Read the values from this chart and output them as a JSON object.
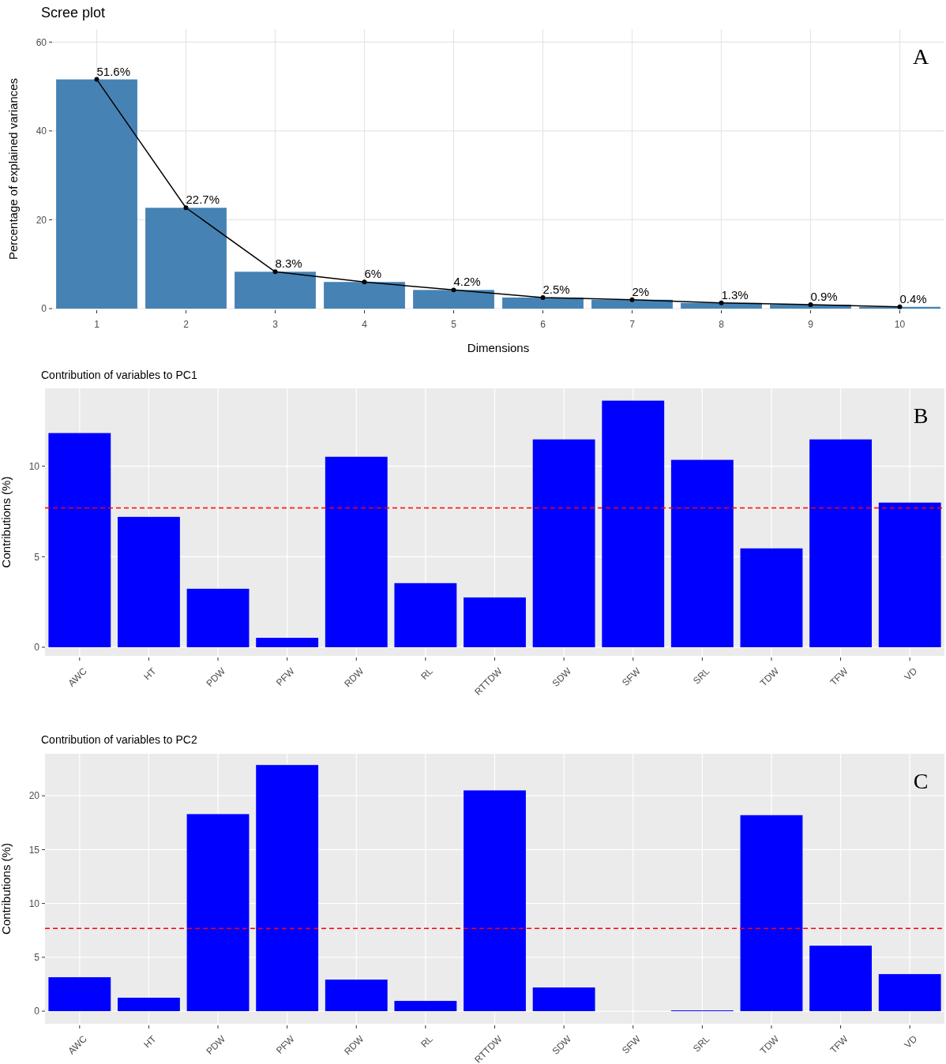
{
  "chart_data": [
    {
      "type": "bar",
      "title": "Scree plot",
      "xlabel": "Dimensions",
      "ylabel": "Percentage of explained variances",
      "categories": [
        "1",
        "2",
        "3",
        "4",
        "5",
        "6",
        "7",
        "8",
        "9",
        "10"
      ],
      "series": [
        {
          "color": "#4682b4",
          "values": [
            51.6,
            22.7,
            8.3,
            6,
            4.2,
            2.5,
            2,
            1.3,
            0.9,
            0.4
          ]
        },
        {
          "type": "line",
          "color": "#000000",
          "values": [
            51.6,
            22.7,
            8.3,
            6,
            4.2,
            2.5,
            2,
            1.3,
            0.9,
            0.4
          ],
          "value_labels": [
            "51.6%",
            "22.7%",
            "8.3%",
            "6%",
            "4.2%",
            "2.5%",
            "2%",
            "1.3%",
            "0.9%",
            "0.4%"
          ]
        }
      ],
      "marker": "circle",
      "ylim": [
        0,
        62.9
      ],
      "yticks": [
        0,
        20,
        40,
        60
      ],
      "grid": true,
      "annotations": [
        "A"
      ]
    },
    {
      "type": "bar",
      "title": "Contribution of variables to PC1",
      "ylabel": "Contributions (%)",
      "categories": [
        "AWC",
        "HT",
        "PDW",
        "PFW",
        "RDW",
        "RL",
        "RTTDW",
        "SDW",
        "SFW",
        "SRL",
        "TDW",
        "TFW",
        "VD"
      ],
      "series": [
        {
          "color": "#0000ff",
          "values": [
            11.83,
            7.2,
            3.23,
            0.52,
            10.52,
            3.54,
            2.75,
            11.48,
            13.62,
            10.35,
            5.46,
            11.48,
            7.99
          ]
        }
      ],
      "ylim": [
        -0.48,
        14.3
      ],
      "yticks": [
        0,
        5,
        10
      ],
      "grid": true,
      "ref_lines": [
        {
          "axis": "y",
          "value": 7.69,
          "color": "#ff0000",
          "line_style": "dashed"
        }
      ],
      "annotations": [
        "B"
      ]
    },
    {
      "type": "bar",
      "title": "Contribution of variables to PC2",
      "ylabel": "Contributions (%)",
      "categories": [
        "AWC",
        "HT",
        "PDW",
        "PFW",
        "RDW",
        "RL",
        "RTTDW",
        "SDW",
        "SFW",
        "SRL",
        "TDW",
        "TFW",
        "VD"
      ],
      "series": [
        {
          "color": "#0000ff",
          "values": [
            3.15,
            1.25,
            18.3,
            22.86,
            2.93,
            0.95,
            20.5,
            2.2,
            0,
            0.07,
            18.2,
            6.08,
            3.44
          ]
        }
      ],
      "ylim": [
        -1.17,
        23.9
      ],
      "yticks": [
        0,
        5,
        10,
        15,
        20
      ],
      "grid": true,
      "ref_lines": [
        {
          "axis": "y",
          "value": 7.69,
          "color": "#ff0000",
          "line_style": "dashed"
        }
      ],
      "annotations": [
        "C"
      ]
    }
  ]
}
